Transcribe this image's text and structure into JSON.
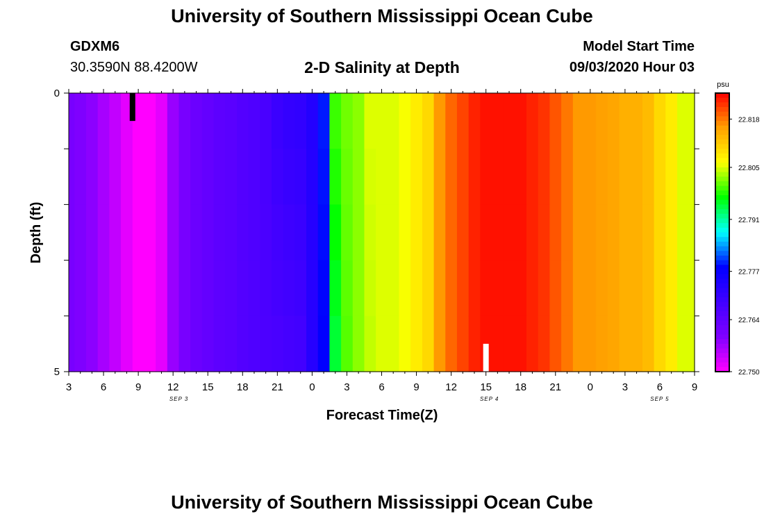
{
  "header": {
    "title": "University of Southern Mississippi Ocean Cube",
    "station_id": "GDXM6",
    "coordinates": "30.3590N 88.4200W",
    "plot_title": "2-D Salinity at Depth",
    "model_start_label": "Model Start Time",
    "model_start_value": "09/03/2020 Hour 03"
  },
  "footer": {
    "title": "University of Southern Mississippi Ocean Cube"
  },
  "chart_data": {
    "type": "heatmap",
    "title": "2-D Salinity at Depth",
    "xlabel": "Forecast Time(Z)",
    "ylabel": "Depth (ft)",
    "y_ticks": [
      "0",
      "5"
    ],
    "ylim": [
      0,
      5
    ],
    "x_ticks": [
      "3",
      "6",
      "9",
      "12",
      "15",
      "18",
      "21",
      "0",
      "3",
      "6",
      "9",
      "12",
      "15",
      "18",
      "21",
      "0",
      "3",
      "6",
      "9"
    ],
    "day_labels": [
      "SEP 3",
      "SEP 4",
      "SEP 5"
    ],
    "colorbar": {
      "unit": "psu",
      "ticks": [
        "22.818",
        "22.805",
        "22.791",
        "22.777",
        "22.764",
        "22.750"
      ],
      "range": [
        22.75,
        22.825
      ]
    },
    "color_scale": [
      "#ff00ff",
      "#8000ff",
      "#4000ff",
      "#0000ff",
      "#00ffff",
      "#00ff00",
      "#ffff00",
      "#ffa000",
      "#ff0000"
    ],
    "forecast_hours": [
      0,
      1,
      2,
      3,
      4,
      5,
      6,
      7,
      8,
      9,
      10,
      11,
      12,
      13,
      14,
      15,
      16,
      17,
      18,
      19,
      20,
      21,
      22,
      23,
      24,
      25,
      26,
      27,
      28,
      29,
      30,
      31,
      32,
      33,
      34,
      35,
      36,
      37,
      38,
      39,
      40,
      41,
      42,
      43,
      44,
      45,
      46,
      47,
      48,
      49,
      50,
      51,
      52,
      53,
      54
    ],
    "salinity_surface": [
      22.7605,
      22.7595,
      22.7585,
      22.7565,
      22.7545,
      22.752,
      22.75,
      22.75,
      22.752,
      22.7575,
      22.7605,
      22.7625,
      22.7635,
      22.7645,
      22.765,
      22.766,
      22.7665,
      22.7675,
      22.7695,
      22.7705,
      22.771,
      22.773,
      22.779,
      22.799,
      22.801,
      22.802,
      22.805,
      22.805,
      22.805,
      22.806,
      22.808,
      22.81,
      22.816,
      22.819,
      22.821,
      22.823,
      22.824,
      22.824,
      22.824,
      22.824,
      22.823,
      22.822,
      22.82,
      22.818,
      22.816,
      22.816,
      22.8155,
      22.815,
      22.814,
      22.814,
      22.813,
      22.81,
      22.808,
      22.805,
      22.805
    ],
    "salinity_bottom": [
      22.7605,
      22.7595,
      22.7585,
      22.7565,
      22.7545,
      22.752,
      22.75,
      22.75,
      22.752,
      22.7575,
      22.7605,
      22.7625,
      22.7635,
      22.7645,
      22.765,
      22.766,
      22.7665,
      22.767,
      22.7675,
      22.768,
      22.7685,
      22.7725,
      22.778,
      22.795,
      22.8,
      22.802,
      22.804,
      22.805,
      22.805,
      22.806,
      22.808,
      22.81,
      22.816,
      22.819,
      22.821,
      22.823,
      22.824,
      22.824,
      22.824,
      22.824,
      22.823,
      22.822,
      22.82,
      22.818,
      22.816,
      22.816,
      22.8155,
      22.815,
      22.814,
      22.814,
      22.813,
      22.81,
      22.808,
      22.805,
      22.805
    ],
    "markers": [
      {
        "color": "#000000",
        "hour": 5.5,
        "depth_range": [
          0,
          0.5
        ]
      },
      {
        "color": "#ffffff",
        "hour": 36,
        "depth_range": [
          4.5,
          5
        ]
      }
    ]
  }
}
